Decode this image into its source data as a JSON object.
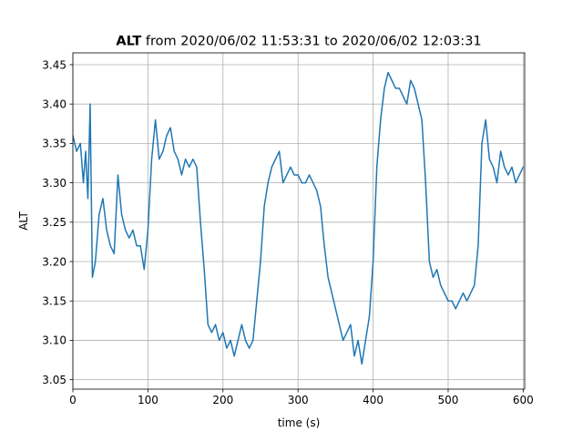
{
  "chart_data": {
    "type": "line",
    "title": {
      "bold": "ALT",
      "rest": " from 2020/06/02 11:53:31 to 2020/06/02 12:03:31"
    },
    "xlabel": "time (s)",
    "ylabel": "ALT",
    "xlim": [
      0,
      602
    ],
    "ylim": [
      3.038,
      3.465
    ],
    "grid": true,
    "x_ticks": [
      0,
      100,
      200,
      300,
      400,
      500,
      600
    ],
    "y_ticks": [
      3.05,
      3.1,
      3.15,
      3.2,
      3.25,
      3.3,
      3.35,
      3.4,
      3.45
    ],
    "x_tick_labels": [
      "0",
      "100",
      "200",
      "300",
      "400",
      "500",
      "600"
    ],
    "y_tick_labels": [
      "3.05",
      "3.10",
      "3.15",
      "3.20",
      "3.25",
      "3.30",
      "3.35",
      "3.40",
      "3.45"
    ],
    "series": [
      {
        "color": "#1f77b4",
        "x": [
          0,
          5,
          10,
          14,
          17,
          20,
          23,
          26,
          30,
          35,
          40,
          45,
          50,
          55,
          60,
          65,
          70,
          75,
          80,
          85,
          90,
          95,
          100,
          105,
          110,
          115,
          120,
          125,
          130,
          135,
          140,
          145,
          150,
          155,
          160,
          165,
          170,
          175,
          180,
          185,
          190,
          195,
          200,
          205,
          210,
          215,
          220,
          225,
          230,
          235,
          240,
          245,
          250,
          255,
          260,
          265,
          270,
          275,
          280,
          285,
          290,
          295,
          300,
          305,
          310,
          315,
          320,
          325,
          330,
          335,
          340,
          345,
          350,
          355,
          360,
          365,
          370,
          375,
          380,
          385,
          390,
          395,
          400,
          405,
          410,
          415,
          420,
          425,
          430,
          435,
          440,
          445,
          450,
          455,
          460,
          465,
          470,
          475,
          480,
          485,
          490,
          495,
          500,
          505,
          510,
          515,
          520,
          525,
          530,
          535,
          540,
          545,
          550,
          555,
          560,
          565,
          570,
          575,
          580,
          585,
          590,
          595,
          600
        ],
        "y": [
          3.36,
          3.34,
          3.35,
          3.3,
          3.34,
          3.28,
          3.4,
          3.18,
          3.2,
          3.26,
          3.28,
          3.24,
          3.22,
          3.21,
          3.31,
          3.26,
          3.24,
          3.23,
          3.24,
          3.22,
          3.22,
          3.19,
          3.24,
          3.33,
          3.38,
          3.33,
          3.34,
          3.36,
          3.37,
          3.34,
          3.33,
          3.31,
          3.33,
          3.32,
          3.33,
          3.32,
          3.25,
          3.19,
          3.12,
          3.11,
          3.12,
          3.1,
          3.11,
          3.09,
          3.1,
          3.08,
          3.1,
          3.12,
          3.1,
          3.09,
          3.1,
          3.15,
          3.2,
          3.27,
          3.3,
          3.32,
          3.33,
          3.34,
          3.3,
          3.31,
          3.32,
          3.31,
          3.31,
          3.3,
          3.3,
          3.31,
          3.3,
          3.29,
          3.27,
          3.22,
          3.18,
          3.16,
          3.14,
          3.12,
          3.1,
          3.11,
          3.12,
          3.08,
          3.1,
          3.07,
          3.1,
          3.13,
          3.2,
          3.32,
          3.38,
          3.42,
          3.44,
          3.43,
          3.42,
          3.42,
          3.41,
          3.4,
          3.43,
          3.42,
          3.4,
          3.38,
          3.3,
          3.2,
          3.18,
          3.19,
          3.17,
          3.16,
          3.15,
          3.15,
          3.14,
          3.15,
          3.16,
          3.15,
          3.16,
          3.17,
          3.22,
          3.35,
          3.38,
          3.33,
          3.32,
          3.3,
          3.34,
          3.32,
          3.31,
          3.32,
          3.3,
          3.31,
          3.32
        ]
      }
    ]
  }
}
